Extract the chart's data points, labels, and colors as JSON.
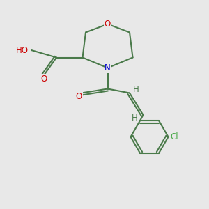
{
  "bg_color": "#e8e8e8",
  "bond_color": "#4a7a4a",
  "bond_width": 1.5,
  "atom_colors": {
    "O": "#cc0000",
    "N": "#0000cc",
    "Cl": "#4aaa4a",
    "C": "#4a7a4a",
    "H": "#4a7a4a"
  },
  "font_size": 8.5
}
